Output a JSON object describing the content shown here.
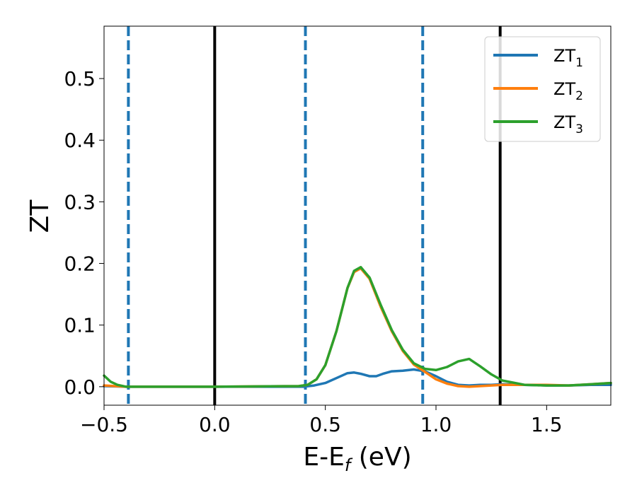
{
  "chart_data": {
    "type": "line",
    "xlabel": "E-E",
    "xlabel_sub": "f",
    "xlabel_unit": " (eV)",
    "ylabel": "ZT",
    "xlim": [
      -0.5,
      1.79
    ],
    "ylim": [
      -0.03,
      0.585
    ],
    "x_ticks": [
      -0.5,
      0.0,
      0.5,
      1.0,
      1.5
    ],
    "x_tick_labels": [
      "−0.5",
      "0.0",
      "0.5",
      "1.0",
      "1.5"
    ],
    "y_ticks": [
      0.0,
      0.1,
      0.2,
      0.3,
      0.4,
      0.5
    ],
    "y_tick_labels": [
      "0.0",
      "0.1",
      "0.2",
      "0.3",
      "0.4",
      "0.5"
    ],
    "grid": false,
    "legend": "top-right",
    "vertical_lines": [
      {
        "x": -0.39,
        "style": "dashed",
        "color": "#1f77b4"
      },
      {
        "x": 0.0,
        "style": "solid",
        "color": "#000000"
      },
      {
        "x": 0.41,
        "style": "dashed",
        "color": "#1f77b4"
      },
      {
        "x": 0.94,
        "style": "dashed",
        "color": "#1f77b4"
      },
      {
        "x": 1.29,
        "style": "solid",
        "color": "#000000"
      }
    ],
    "series": [
      {
        "name": "ZT",
        "name_sub": "1",
        "color": "#1f77b4",
        "x": [
          -0.5,
          -0.45,
          -0.4,
          0.0,
          0.4,
          0.45,
          0.5,
          0.55,
          0.6,
          0.63,
          0.66,
          0.7,
          0.73,
          0.76,
          0.8,
          0.85,
          0.9,
          0.95,
          1.0,
          1.05,
          1.1,
          1.15,
          1.2,
          1.25,
          1.3,
          1.4,
          1.5,
          1.6,
          1.7,
          1.79
        ],
        "y": [
          0.001,
          0.0005,
          0.0,
          0.0,
          0.0,
          0.002,
          0.006,
          0.014,
          0.022,
          0.023,
          0.021,
          0.017,
          0.017,
          0.021,
          0.025,
          0.026,
          0.028,
          0.025,
          0.017,
          0.008,
          0.003,
          0.002,
          0.003,
          0.003,
          0.004,
          0.003,
          0.002,
          0.002,
          0.003,
          0.003
        ]
      },
      {
        "name": "ZT",
        "name_sub": "2",
        "color": "#ff7f0e",
        "x": [
          -0.5,
          -0.45,
          -0.4,
          0.0,
          0.38,
          0.42,
          0.46,
          0.5,
          0.55,
          0.6,
          0.63,
          0.66,
          0.7,
          0.75,
          0.8,
          0.85,
          0.9,
          0.95,
          1.0,
          1.05,
          1.1,
          1.15,
          1.2,
          1.25,
          1.3,
          1.4,
          1.5,
          1.6,
          1.7,
          1.79
        ],
        "y": [
          0.002,
          0.001,
          0.0,
          0.0,
          0.001,
          0.003,
          0.012,
          0.035,
          0.09,
          0.16,
          0.186,
          0.192,
          0.175,
          0.13,
          0.09,
          0.058,
          0.036,
          0.024,
          0.012,
          0.005,
          0.001,
          0.0,
          0.001,
          0.002,
          0.003,
          0.003,
          0.003,
          0.002,
          0.004,
          0.006
        ]
      },
      {
        "name": "ZT",
        "name_sub": "3",
        "color": "#2ca02c",
        "x": [
          -0.5,
          -0.47,
          -0.44,
          -0.4,
          0.0,
          0.38,
          0.42,
          0.46,
          0.5,
          0.55,
          0.6,
          0.63,
          0.66,
          0.7,
          0.75,
          0.8,
          0.85,
          0.9,
          0.95,
          1.0,
          1.05,
          1.1,
          1.15,
          1.2,
          1.25,
          1.3,
          1.4,
          1.5,
          1.6,
          1.7,
          1.79
        ],
        "y": [
          0.018,
          0.008,
          0.003,
          0.0,
          0.0,
          0.001,
          0.003,
          0.012,
          0.035,
          0.09,
          0.16,
          0.188,
          0.194,
          0.177,
          0.133,
          0.092,
          0.06,
          0.038,
          0.029,
          0.027,
          0.032,
          0.041,
          0.045,
          0.033,
          0.02,
          0.01,
          0.003,
          0.002,
          0.002,
          0.004,
          0.006
        ]
      }
    ]
  }
}
